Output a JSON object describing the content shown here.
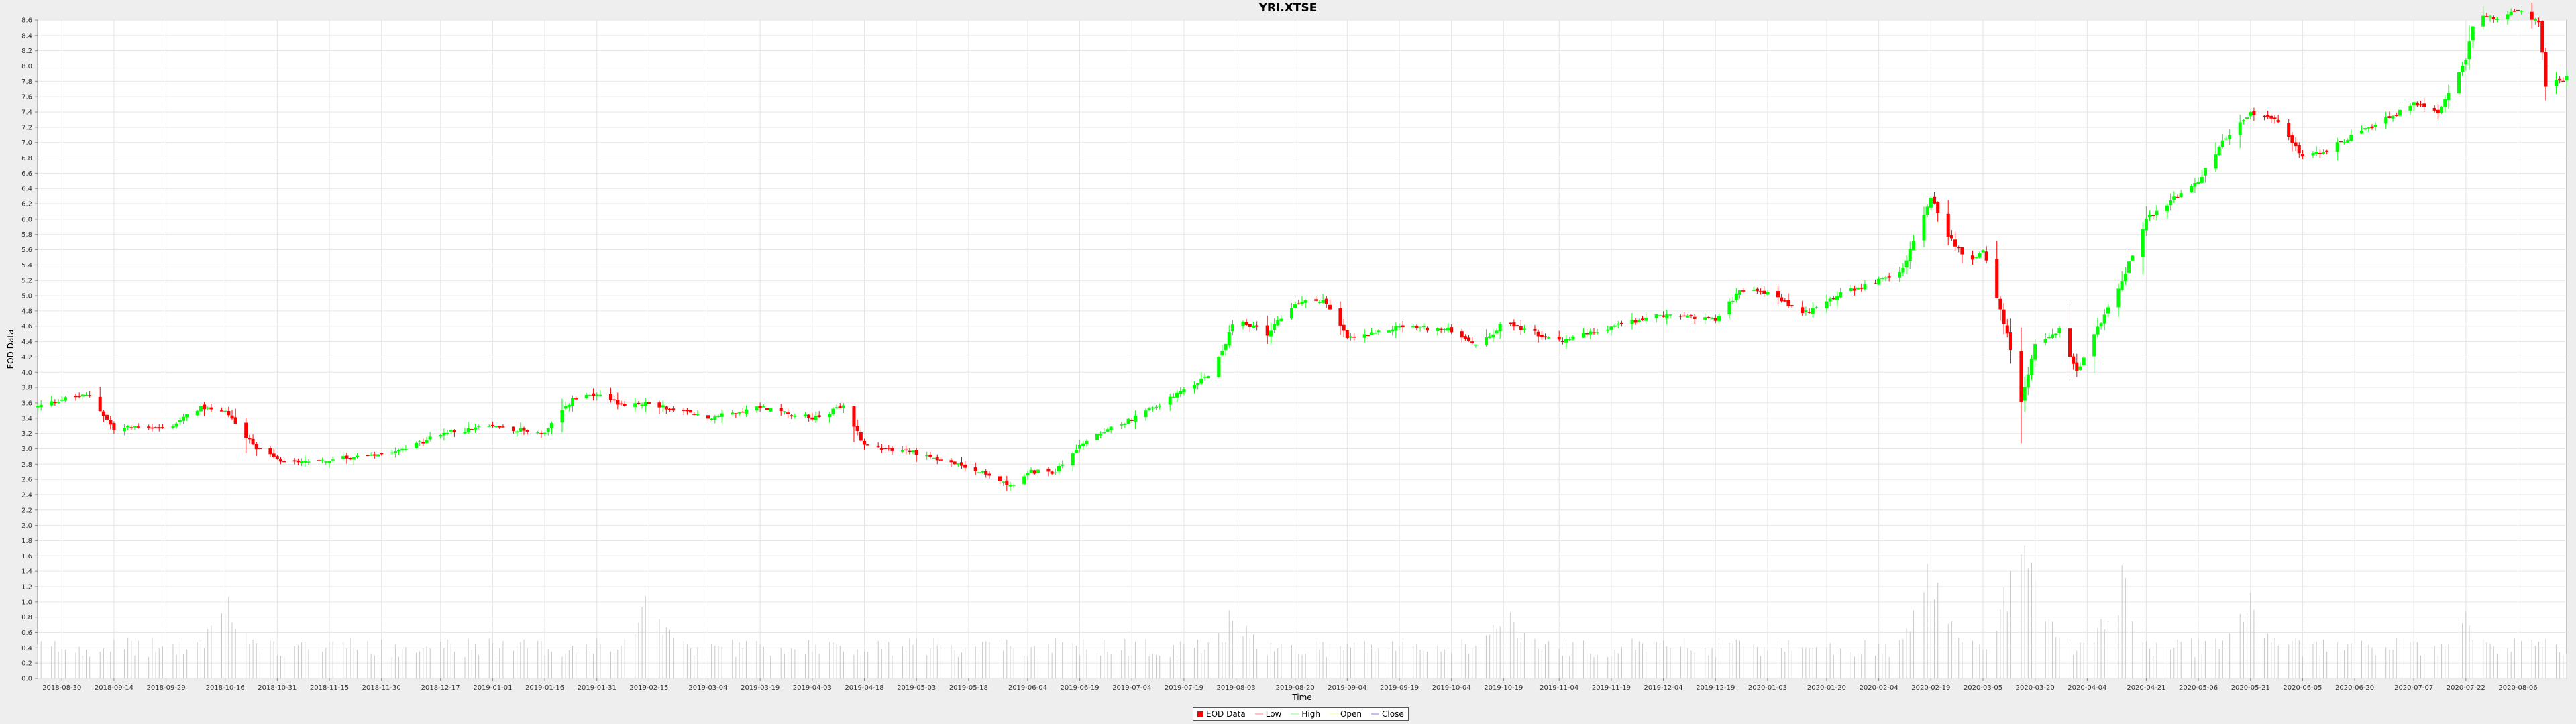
{
  "chart_data": {
    "type": "candlestick",
    "title": "YRI.XTSE",
    "xlabel": "Time",
    "ylabel": "EOD Data",
    "ylim": [
      0,
      8.6
    ],
    "yticks": [
      0.0,
      0.2,
      0.4,
      0.6,
      0.8,
      1.0,
      1.2,
      1.4,
      1.6,
      1.8,
      2.0,
      2.2,
      2.4,
      2.6,
      2.8,
      3.0,
      3.2,
      3.4,
      3.6,
      3.8,
      4.0,
      4.2,
      4.4,
      4.6,
      4.8,
      5.0,
      5.2,
      5.4,
      5.6,
      5.8,
      6.0,
      6.2,
      6.4,
      6.6,
      6.8,
      7.0,
      7.2,
      7.4,
      7.6,
      7.8,
      8.0,
      8.2,
      8.4,
      8.6
    ],
    "x_range": [
      "2018-08-23",
      "2020-08-20"
    ],
    "xticks": [
      "2018-08-30",
      "2018-09-14",
      "2018-09-29",
      "2018-10-16",
      "2018-10-31",
      "2018-11-15",
      "2018-11-30",
      "2018-12-17",
      "2019-01-01",
      "2019-01-16",
      "2019-01-31",
      "2019-02-15",
      "2019-03-04",
      "2019-03-19",
      "2019-04-03",
      "2019-04-18",
      "2019-05-03",
      "2019-05-18",
      "2019-06-04",
      "2019-06-19",
      "2019-07-04",
      "2019-07-19",
      "2019-08-03",
      "2019-08-20",
      "2019-09-04",
      "2019-09-19",
      "2019-10-04",
      "2019-10-19",
      "2019-11-04",
      "2019-11-19",
      "2019-12-04",
      "2019-12-19",
      "2020-01-03",
      "2020-01-20",
      "2020-02-04",
      "2020-02-19",
      "2020-03-05",
      "2020-03-20",
      "2020-04-04",
      "2020-04-21",
      "2020-05-06",
      "2020-05-21",
      "2020-06-05",
      "2020-06-20",
      "2020-07-07",
      "2020-07-22",
      "2020-08-06"
    ],
    "price_anchors": [
      [
        "2018-08-23",
        3.55
      ],
      [
        "2018-08-30",
        3.65
      ],
      [
        "2018-09-07",
        3.7
      ],
      [
        "2018-09-14",
        3.25
      ],
      [
        "2018-09-22",
        3.3
      ],
      [
        "2018-09-29",
        3.25
      ],
      [
        "2018-10-09",
        3.55
      ],
      [
        "2018-10-16",
        3.5
      ],
      [
        "2018-10-24",
        3.05
      ],
      [
        "2018-10-31",
        2.85
      ],
      [
        "2018-11-15",
        2.85
      ],
      [
        "2018-11-30",
        2.95
      ],
      [
        "2018-12-10",
        3.05
      ],
      [
        "2018-12-17",
        3.2
      ],
      [
        "2019-01-01",
        3.3
      ],
      [
        "2019-01-16",
        3.2
      ],
      [
        "2019-01-24",
        3.65
      ],
      [
        "2019-01-31",
        3.7
      ],
      [
        "2019-02-08",
        3.55
      ],
      [
        "2019-02-15",
        3.6
      ],
      [
        "2019-03-04",
        3.4
      ],
      [
        "2019-03-19",
        3.55
      ],
      [
        "2019-04-03",
        3.4
      ],
      [
        "2019-04-12",
        3.55
      ],
      [
        "2019-04-18",
        3.05
      ],
      [
        "2019-05-03",
        2.95
      ],
      [
        "2019-05-18",
        2.75
      ],
      [
        "2019-06-01",
        2.5
      ],
      [
        "2019-06-04",
        2.7
      ],
      [
        "2019-06-12",
        2.7
      ],
      [
        "2019-06-19",
        3.05
      ],
      [
        "2019-07-04",
        3.4
      ],
      [
        "2019-07-19",
        3.75
      ],
      [
        "2019-07-27",
        4.0
      ],
      [
        "2019-08-03",
        4.7
      ],
      [
        "2019-08-12",
        4.5
      ],
      [
        "2019-08-20",
        4.9
      ],
      [
        "2019-08-28",
        4.95
      ],
      [
        "2019-09-04",
        4.45
      ],
      [
        "2019-09-12",
        4.5
      ],
      [
        "2019-09-19",
        4.6
      ],
      [
        "2019-10-04",
        4.55
      ],
      [
        "2019-10-12",
        4.35
      ],
      [
        "2019-10-19",
        4.65
      ],
      [
        "2019-11-04",
        4.4
      ],
      [
        "2019-11-19",
        4.6
      ],
      [
        "2019-12-04",
        4.75
      ],
      [
        "2019-12-19",
        4.7
      ],
      [
        "2019-12-26",
        5.05
      ],
      [
        "2020-01-03",
        5.05
      ],
      [
        "2020-01-13",
        4.75
      ],
      [
        "2020-01-20",
        4.95
      ],
      [
        "2020-02-04",
        5.2
      ],
      [
        "2020-02-11",
        5.35
      ],
      [
        "2020-02-19",
        6.3
      ],
      [
        "2020-02-24",
        5.8
      ],
      [
        "2020-03-01",
        5.4
      ],
      [
        "2020-03-05",
        5.6
      ],
      [
        "2020-03-12",
        4.5
      ],
      [
        "2020-03-16",
        3.6
      ],
      [
        "2020-03-20",
        4.4
      ],
      [
        "2020-03-27",
        4.55
      ],
      [
        "2020-04-01",
        4.0
      ],
      [
        "2020-04-04",
        4.3
      ],
      [
        "2020-04-14",
        5.2
      ],
      [
        "2020-04-21",
        6.0
      ],
      [
        "2020-05-06",
        6.5
      ],
      [
        "2020-05-13",
        7.0
      ],
      [
        "2020-05-21",
        7.4
      ],
      [
        "2020-05-28",
        7.3
      ],
      [
        "2020-06-05",
        6.8
      ],
      [
        "2020-06-12",
        6.9
      ],
      [
        "2020-06-20",
        7.1
      ],
      [
        "2020-07-07",
        7.5
      ],
      [
        "2020-07-14",
        7.4
      ],
      [
        "2020-07-22",
        8.1
      ],
      [
        "2020-07-25",
        8.7
      ],
      [
        "2020-07-30",
        8.6
      ],
      [
        "2020-08-06",
        8.75
      ],
      [
        "2020-08-12",
        8.55
      ],
      [
        "2020-08-14",
        7.75
      ],
      [
        "2020-08-20",
        7.85
      ]
    ],
    "volume_peaks": [
      [
        "2018-10-16",
        1.2
      ],
      [
        "2019-02-15",
        1.3
      ],
      [
        "2019-08-03",
        1.1
      ],
      [
        "2019-10-19",
        1.3
      ],
      [
        "2020-02-19",
        1.7
      ],
      [
        "2020-03-16",
        2.1
      ],
      [
        "2020-03-20",
        1.8
      ],
      [
        "2020-04-14",
        1.6
      ],
      [
        "2020-05-21",
        1.3
      ],
      [
        "2020-07-22",
        1.0
      ]
    ],
    "colors": {
      "up": "#00ff00",
      "down": "#ff0000",
      "volume": "#c8c8c8",
      "grid": "#e6e6e6"
    },
    "legend_position": "bottom-center",
    "grid": true
  },
  "legend": [
    {
      "label": "EOD Data",
      "color": "#ff0000",
      "kind": "box"
    },
    {
      "label": "Low",
      "color": "#ffc0c0",
      "kind": "line"
    },
    {
      "label": "High",
      "color": "#c0ffc0",
      "kind": "line"
    },
    {
      "label": "Open",
      "color": "#ffffc0",
      "kind": "line"
    },
    {
      "label": "Close",
      "color": "#c0c0ff",
      "kind": "line"
    }
  ]
}
